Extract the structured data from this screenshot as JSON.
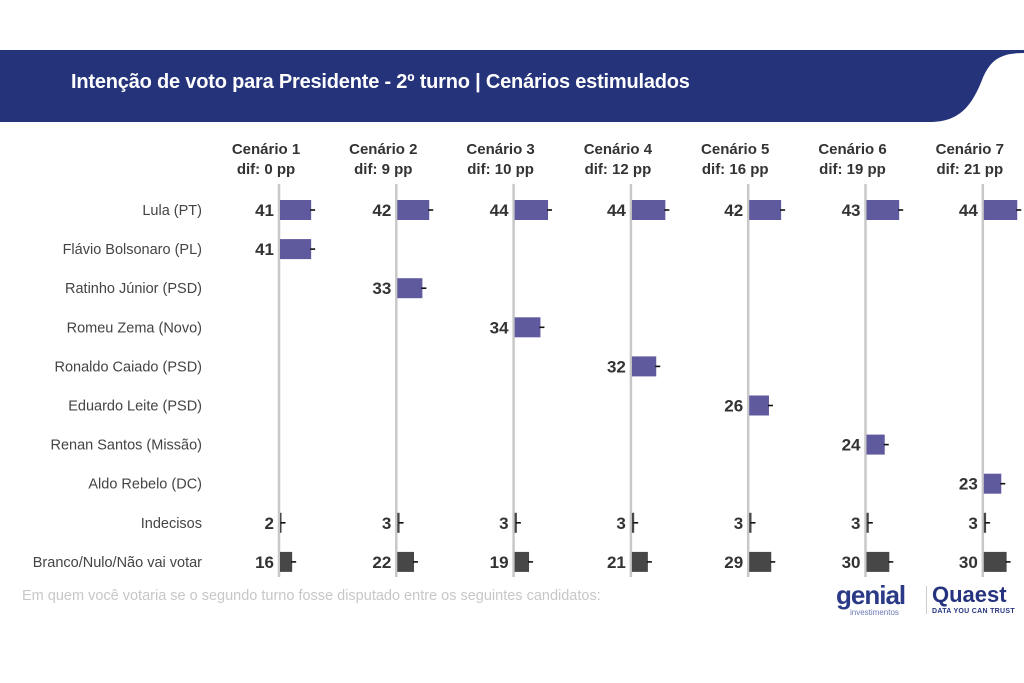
{
  "header": {
    "title": "Intenção de voto para Presidente - 2º turno | Cenários estimulados",
    "banner_color": "#24337a"
  },
  "footnote": "Em quem você votaria se o segundo turno fosse disputado entre os seguintes candidatos:",
  "logos": {
    "genial": "genial",
    "genial_sub": "investimentos",
    "quaest": "Quaest",
    "quaest_sub": "DATA YOU CAN TRUST"
  },
  "chart_data": {
    "type": "bar",
    "orientation": "horizontal",
    "title": "Intenção de voto para Presidente - 2º turno | Cenários estimulados",
    "categories": [
      "Lula (PT)",
      "Flávio Bolsonaro (PL)",
      "Ratinho Júnior (PSD)",
      "Romeu Zema (Novo)",
      "Ronaldo Caiado (PSD)",
      "Eduardo Leite (PSD)",
      "Renan Santos (Missão)",
      "Aldo Rebelo (DC)",
      "Indecisos",
      "Branco/Nulo/Não vai votar"
    ],
    "colors": {
      "candidate": "#5f5a9e",
      "other": "#474747",
      "axis": "#c8c8c8"
    },
    "other_categories": [
      "Indecisos",
      "Branco/Nulo/Não vai votar"
    ],
    "series": [
      {
        "name": "Cenário 1",
        "subtitle": "dif: 0 pp",
        "values": [
          41,
          41,
          null,
          null,
          null,
          null,
          null,
          null,
          2,
          16
        ]
      },
      {
        "name": "Cenário 2",
        "subtitle": "dif: 9 pp",
        "values": [
          42,
          null,
          33,
          null,
          null,
          null,
          null,
          null,
          3,
          22
        ]
      },
      {
        "name": "Cenário 3",
        "subtitle": "dif: 10 pp",
        "values": [
          44,
          null,
          null,
          34,
          null,
          null,
          null,
          null,
          3,
          19
        ]
      },
      {
        "name": "Cenário 4",
        "subtitle": "dif: 12 pp",
        "values": [
          44,
          null,
          null,
          null,
          32,
          null,
          null,
          null,
          3,
          21
        ]
      },
      {
        "name": "Cenário 5",
        "subtitle": "dif: 16 pp",
        "values": [
          42,
          null,
          null,
          null,
          null,
          26,
          null,
          null,
          3,
          29
        ]
      },
      {
        "name": "Cenário 6",
        "subtitle": "dif: 19 pp",
        "values": [
          43,
          null,
          null,
          null,
          null,
          null,
          24,
          null,
          3,
          30
        ]
      },
      {
        "name": "Cenário 7",
        "subtitle": "dif: 21 pp",
        "values": [
          44,
          null,
          null,
          null,
          null,
          null,
          null,
          23,
          3,
          30
        ]
      }
    ],
    "unit": "%",
    "xlim": [
      0,
      100
    ],
    "legend": "none"
  }
}
